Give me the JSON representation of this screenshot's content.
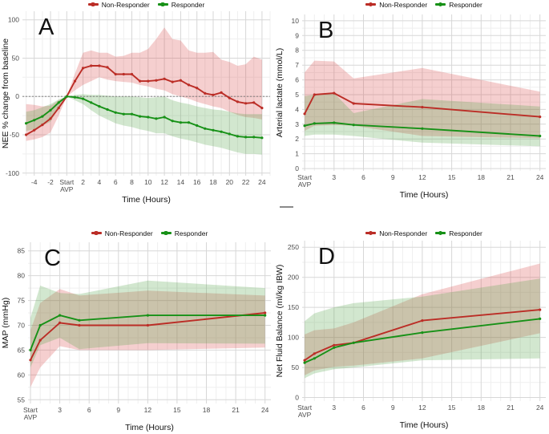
{
  "figure": {
    "legend": {
      "position": "top-center",
      "items": [
        {
          "key": "nonresponder",
          "label": "Non-Responder",
          "color": "#bb2d26"
        },
        {
          "key": "responder",
          "label": "Responder",
          "color": "#179117"
        }
      ]
    },
    "colors": {
      "nonresponder_line": "#bb2d26",
      "responder_line": "#179117",
      "nonresponder_band": "rgba(217,79,79,0.27)",
      "responder_band": "rgba(83,163,68,0.26)",
      "grid_major": "#d7d7d7",
      "grid_minor": "#efefef"
    }
  },
  "chart_data": [
    {
      "id": "a",
      "letter": "A",
      "type": "line",
      "xlabel": "Time (Hours)",
      "ylabel": "NEE % change from baseline",
      "x_domain": [
        -5.45,
        25.0
      ],
      "y_domain": [
        -103.4,
        111.2
      ],
      "grid": true,
      "refline_y": 0,
      "legend_y": 0,
      "margins": {
        "l": 28,
        "r": 5,
        "t": 14,
        "b": 51
      },
      "x_major": [
        {
          "v": -4,
          "t": "-4"
        },
        {
          "v": -2,
          "t": "-2"
        },
        {
          "v": 0,
          "t": "Start\nAVP"
        },
        {
          "v": 2,
          "t": "2"
        },
        {
          "v": 4,
          "t": "4"
        },
        {
          "v": 6,
          "t": "6"
        },
        {
          "v": 8,
          "t": "8"
        },
        {
          "v": 10,
          "t": "10"
        },
        {
          "v": 12,
          "t": "12"
        },
        {
          "v": 14,
          "t": "14"
        },
        {
          "v": 16,
          "t": "16"
        },
        {
          "v": 18,
          "t": "18"
        },
        {
          "v": 20,
          "t": "20"
        },
        {
          "v": 22,
          "t": "22"
        },
        {
          "v": 24,
          "t": "24"
        }
      ],
      "x_minor": [
        -5,
        -3,
        -1,
        1,
        3,
        5,
        7,
        9,
        11,
        13,
        15,
        17,
        19,
        21,
        23,
        25
      ],
      "y_major": [
        {
          "v": -100,
          "t": "-100"
        },
        {
          "v": -50,
          "t": "-50"
        },
        {
          "v": 0,
          "t": "0"
        },
        {
          "v": 50,
          "t": "50"
        },
        {
          "v": 100,
          "t": "100"
        }
      ],
      "y_minor": [
        -75,
        -25,
        25,
        75
      ],
      "x": [
        -5,
        -4,
        -3,
        -2,
        -1,
        0,
        1,
        2,
        3,
        4,
        5,
        6,
        7,
        8,
        9,
        10,
        11,
        12,
        13,
        14,
        15,
        16,
        17,
        18,
        19,
        20,
        21,
        22,
        23,
        24
      ],
      "series": [
        {
          "key": "nonresponder",
          "name": "Non-Responder",
          "color": "#bb2d26",
          "band_color": "rgba(217,79,79,0.27)",
          "values": [
            -50,
            -44,
            -37,
            -29,
            -15,
            0,
            20,
            37,
            40,
            40,
            38,
            29,
            29,
            29,
            20,
            20,
            21,
            23,
            19,
            21,
            15,
            11,
            4,
            2,
            5,
            -2,
            -7,
            -9,
            -8,
            -15
          ],
          "band_lower": [
            -58,
            -56,
            -53,
            -47,
            -25,
            0,
            8,
            15,
            20,
            25,
            22,
            20,
            19,
            18,
            15,
            13,
            10,
            8,
            3,
            0,
            -3,
            -7,
            -10,
            -13,
            -15,
            -20,
            -24,
            -27,
            -28,
            -30
          ],
          "band_upper": [
            -10,
            -11,
            -13,
            -12,
            -5,
            0,
            30,
            57,
            60,
            57,
            57,
            52,
            53,
            57,
            57,
            62,
            75,
            90,
            75,
            73,
            60,
            57,
            57,
            58,
            48,
            45,
            40,
            42,
            52,
            48
          ]
        },
        {
          "key": "responder",
          "name": "Responder",
          "color": "#179117",
          "band_color": "rgba(83,163,68,0.26)",
          "values": [
            -35,
            -31,
            -26,
            -18,
            -8,
            0,
            -1,
            -3,
            -8,
            -13,
            -17,
            -21,
            -23,
            -23,
            -26,
            -27,
            -29,
            -27,
            -32,
            -34,
            -34,
            -38,
            -42,
            -44,
            -46,
            -49,
            -52,
            -53,
            -53,
            -54
          ],
          "band_lower": [
            -45,
            -43,
            -38,
            -33,
            -15,
            0,
            -5,
            -10,
            -18,
            -25,
            -30,
            -35,
            -38,
            -40,
            -43,
            -45,
            -48,
            -48,
            -52,
            -55,
            -57,
            -60,
            -63,
            -65,
            -67,
            -70,
            -73,
            -75,
            -75,
            -76
          ],
          "band_upper": [
            -20,
            -18,
            -14,
            -10,
            -4,
            0,
            2,
            3,
            2,
            2,
            1,
            0,
            0,
            0,
            -1,
            -2,
            -1,
            0,
            -5,
            -8,
            -10,
            -13,
            -15,
            -17,
            -18,
            -20,
            -22,
            -23,
            -23,
            -23
          ]
        }
      ]
    },
    {
      "id": "b",
      "letter": "B",
      "type": "line",
      "xlabel": "Time (Hours)",
      "ylabel": "Arterial lactate (mmol/L)",
      "x_domain": [
        -0.25,
        24.6
      ],
      "y_domain": [
        -0.16,
        10.43
      ],
      "grid": true,
      "refline_y": null,
      "legend_y": 0,
      "margins": {
        "l": 35,
        "r": 4,
        "t": 18,
        "b": 57
      },
      "x_major": [
        {
          "v": 0,
          "t": "Start\nAVP"
        },
        {
          "v": 3,
          "t": "3"
        },
        {
          "v": 6,
          "t": "6"
        },
        {
          "v": 9,
          "t": "9"
        },
        {
          "v": 12,
          "t": "12"
        },
        {
          "v": 15,
          "t": "15"
        },
        {
          "v": 18,
          "t": "18"
        },
        {
          "v": 21,
          "t": "21"
        },
        {
          "v": 24,
          "t": "24"
        }
      ],
      "x_minor": [
        1,
        2,
        4,
        5,
        7,
        8,
        10,
        11,
        13,
        14,
        16,
        17,
        19,
        20,
        22,
        23
      ],
      "y_major": [
        {
          "v": 0,
          "t": "0"
        },
        {
          "v": 1,
          "t": "1"
        },
        {
          "v": 2,
          "t": "2"
        },
        {
          "v": 3,
          "t": "3"
        },
        {
          "v": 4,
          "t": "4"
        },
        {
          "v": 5,
          "t": "5"
        },
        {
          "v": 6,
          "t": "6"
        },
        {
          "v": 7,
          "t": "7"
        },
        {
          "v": 8,
          "t": "8"
        },
        {
          "v": 9,
          "t": "9"
        },
        {
          "v": 10,
          "t": "10"
        }
      ],
      "y_minor": [
        0.5,
        1.5,
        2.5,
        3.5,
        4.5,
        5.5,
        6.5,
        7.5,
        8.5,
        9.5
      ],
      "x": [
        0,
        1,
        3,
        5,
        12,
        24
      ],
      "series": [
        {
          "key": "nonresponder",
          "name": "Non-Responder",
          "color": "#bb2d26",
          "band_color": "rgba(217,79,79,0.27)",
          "values": [
            3.7,
            5.0,
            5.1,
            4.4,
            4.15,
            3.5
          ],
          "band_lower": [
            2.55,
            2.9,
            2.95,
            2.9,
            2.2,
            2.05
          ],
          "band_upper": [
            6.5,
            7.3,
            7.25,
            6.1,
            6.8,
            5.2
          ]
        },
        {
          "key": "responder",
          "name": "Responder",
          "color": "#179117",
          "band_color": "rgba(83,163,68,0.26)",
          "values": [
            2.9,
            3.05,
            3.1,
            2.95,
            2.7,
            2.2
          ],
          "band_lower": [
            2.2,
            2.3,
            2.3,
            2.2,
            1.75,
            1.5
          ],
          "band_upper": [
            4.9,
            5.0,
            5.1,
            3.75,
            4.7,
            4.2
          ]
        }
      ]
    },
    {
      "id": "c",
      "letter": "C",
      "type": "line",
      "xlabel": "Time (Hours)",
      "ylabel": "MAP (mmHg)",
      "x_domain": [
        -0.25,
        24.6
      ],
      "y_domain": [
        54.24,
        86.73
      ],
      "grid": true,
      "refline_y": null,
      "legend_y": 15,
      "margins": {
        "l": 35,
        "r": 4,
        "t": 32,
        "b": 38
      },
      "x_major": [
        {
          "v": 0,
          "t": "Start\nAVP"
        },
        {
          "v": 3,
          "t": "3"
        },
        {
          "v": 6,
          "t": "6"
        },
        {
          "v": 9,
          "t": "9"
        },
        {
          "v": 12,
          "t": "12"
        },
        {
          "v": 15,
          "t": "15"
        },
        {
          "v": 18,
          "t": "18"
        },
        {
          "v": 21,
          "t": "21"
        },
        {
          "v": 24,
          "t": "24"
        }
      ],
      "x_minor": [
        1,
        2,
        4,
        5,
        7,
        8,
        10,
        11,
        13,
        14,
        16,
        17,
        19,
        20,
        22,
        23
      ],
      "y_major": [
        {
          "v": 55,
          "t": "55"
        },
        {
          "v": 60,
          "t": "60"
        },
        {
          "v": 65,
          "t": "65"
        },
        {
          "v": 70,
          "t": "70"
        },
        {
          "v": 75,
          "t": "75"
        },
        {
          "v": 80,
          "t": "80"
        },
        {
          "v": 85,
          "t": "85"
        }
      ],
      "y_minor": [
        57.5,
        62.5,
        67.5,
        72.5,
        77.5,
        82.5
      ],
      "x": [
        0,
        1,
        3,
        5,
        12,
        24
      ],
      "series": [
        {
          "key": "nonresponder",
          "name": "Non-Responder",
          "color": "#bb2d26",
          "band_color": "rgba(217,79,79,0.27)",
          "values": [
            63,
            67,
            70.5,
            70,
            70,
            72.5
          ],
          "band_lower": [
            57.5,
            61.5,
            65.8,
            65,
            65,
            65.5
          ],
          "band_upper": [
            69,
            74.5,
            77.3,
            76,
            77,
            76
          ]
        },
        {
          "key": "responder",
          "name": "Responder",
          "color": "#179117",
          "band_color": "rgba(83,163,68,0.26)",
          "values": [
            65,
            70,
            72,
            71,
            72,
            72
          ],
          "band_lower": [
            61.5,
            66,
            67.5,
            65.2,
            66.4,
            66.3
          ],
          "band_upper": [
            71.5,
            78,
            76.5,
            76.3,
            79,
            77.5
          ]
        }
      ]
    },
    {
      "id": "d",
      "letter": "D",
      "type": "line",
      "xlabel": "Time (Hours)",
      "ylabel": "Net Fluid Balance (ml/kg IBW)",
      "x_domain": [
        -0.25,
        24.6
      ],
      "y_domain": [
        -6,
        261
      ],
      "grid": true,
      "refline_y": null,
      "legend_y": 15,
      "margins": {
        "l": 35,
        "r": 4,
        "t": 30,
        "b": 41
      },
      "x_major": [
        {
          "v": 0,
          "t": "Start\nAVP"
        },
        {
          "v": 3,
          "t": "3"
        },
        {
          "v": 6,
          "t": "6"
        },
        {
          "v": 9,
          "t": "9"
        },
        {
          "v": 12,
          "t": "12"
        },
        {
          "v": 15,
          "t": "15"
        },
        {
          "v": 18,
          "t": "18"
        },
        {
          "v": 21,
          "t": "21"
        },
        {
          "v": 24,
          "t": "24"
        }
      ],
      "x_minor": [
        1,
        2,
        4,
        5,
        7,
        8,
        10,
        11,
        13,
        14,
        16,
        17,
        19,
        20,
        22,
        23
      ],
      "y_major": [
        {
          "v": 0,
          "t": "0"
        },
        {
          "v": 50,
          "t": "50"
        },
        {
          "v": 100,
          "t": "100"
        },
        {
          "v": 150,
          "t": "150"
        },
        {
          "v": 200,
          "t": "200"
        },
        {
          "v": 250,
          "t": "250"
        }
      ],
      "y_minor": [
        25,
        75,
        125,
        175,
        225
      ],
      "x": [
        0,
        1,
        3,
        5,
        12,
        24
      ],
      "series": [
        {
          "key": "nonresponder",
          "name": "Non-Responder",
          "color": "#bb2d26",
          "band_color": "rgba(217,79,79,0.27)",
          "values": [
            62,
            73,
            87,
            91,
            128,
            146
          ],
          "band_lower": [
            37,
            45,
            51,
            53,
            65,
            107
          ],
          "band_upper": [
            105,
            112,
            115,
            125,
            172,
            223
          ]
        },
        {
          "key": "responder",
          "name": "Responder",
          "color": "#179117",
          "band_color": "rgba(83,163,68,0.26)",
          "values": [
            58,
            65,
            83,
            91,
            108,
            131
          ],
          "band_lower": [
            32,
            40,
            47,
            50,
            62,
            65
          ],
          "band_upper": [
            127,
            140,
            150,
            157,
            168,
            198
          ]
        }
      ]
    }
  ]
}
